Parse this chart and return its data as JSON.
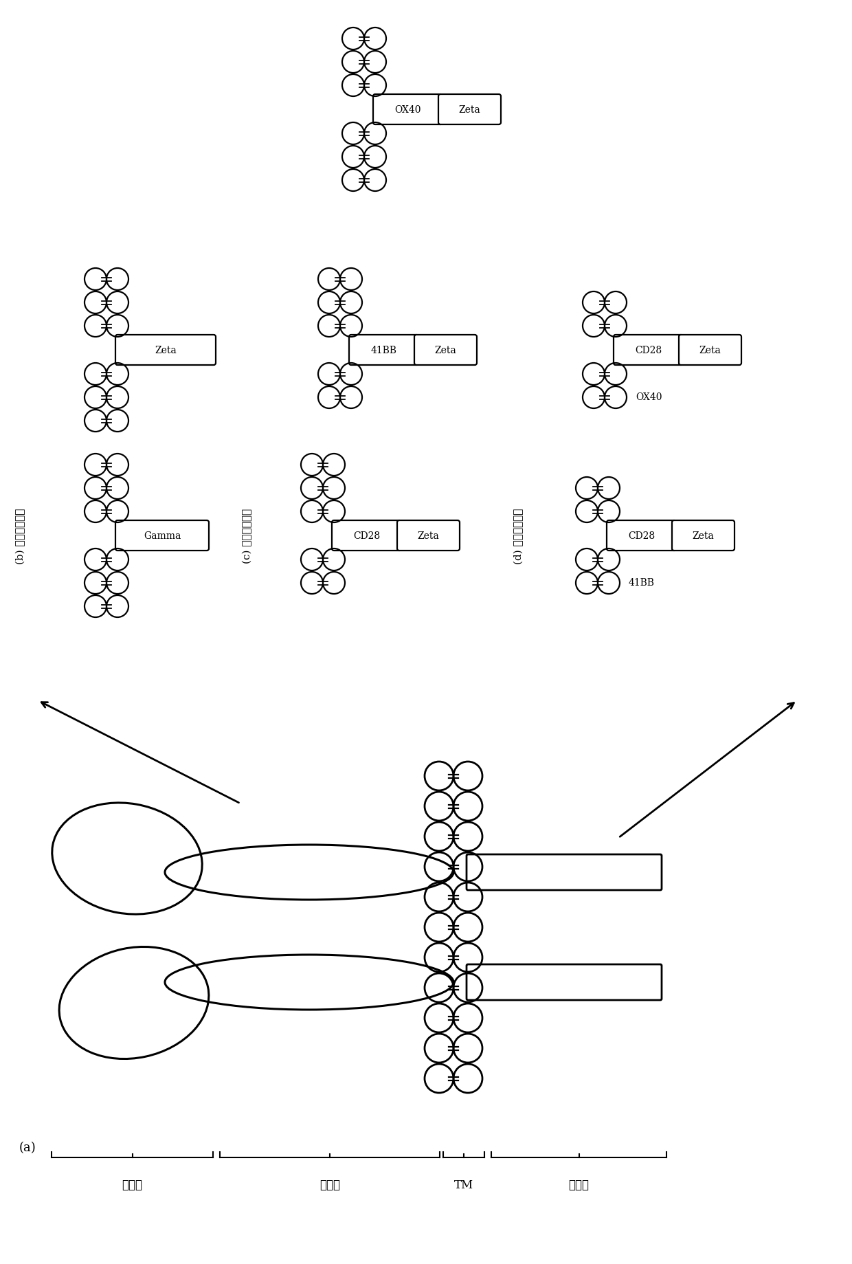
{
  "bg_color": "#ffffff",
  "panels": {
    "a_label": "(a)",
    "b_label": "(b) 第一代胞内域",
    "c_label": "(c) 第二代胞内域",
    "d_label": "(d) 第三代胞内域"
  },
  "bottom_labels": {
    "scfv": "左号影",
    "hinge": "褖转区",
    "tm": "TM",
    "intracellular": "胞内域"
  },
  "chain_cr": 16,
  "chain_ph": 34,
  "chain_bh": 38,
  "chain_lw": 1.6
}
